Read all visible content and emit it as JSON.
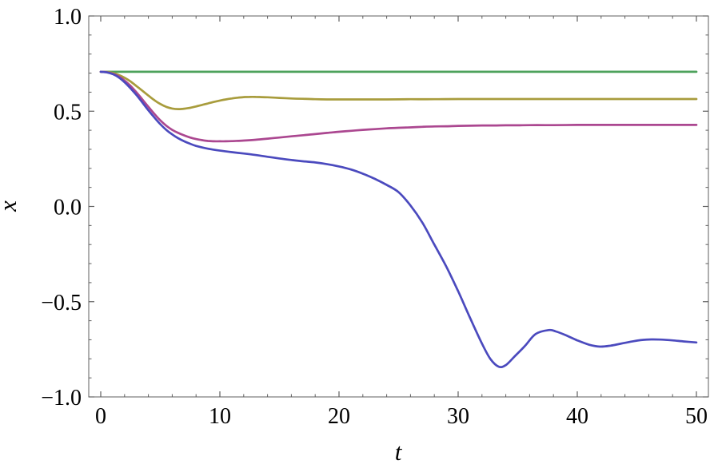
{
  "figure": {
    "background": "#ffffff",
    "frame_color": "#5f5f5f",
    "tick_color": "#5f5f5f",
    "tick_label_color": "#000000"
  },
  "chart_data": {
    "type": "line",
    "title": "",
    "xlabel": "t",
    "ylabel": "x",
    "xlim": [
      0,
      50
    ],
    "ylim": [
      -1.0,
      1.0
    ],
    "grid": false,
    "legend_position": "none",
    "frame": true,
    "x_major_ticks": [
      0,
      10,
      20,
      30,
      40,
      50
    ],
    "x_major_tick_labels": [
      "0",
      "10",
      "20",
      "30",
      "40",
      "50"
    ],
    "x_minor_tick_step": 2,
    "y_major_ticks": [
      -1.0,
      -0.5,
      0.0,
      0.5,
      1.0
    ],
    "y_major_tick_labels": [
      "−1.0",
      "−0.5",
      "0.0",
      "0.5",
      "1.0"
    ],
    "y_minor_tick_step": 0.1,
    "series": [
      {
        "name": "green-constant-curve",
        "color": "#4EA25C",
        "points": [
          [
            0,
            0.707
          ],
          [
            10,
            0.707
          ],
          [
            20,
            0.707
          ],
          [
            30,
            0.707
          ],
          [
            40,
            0.707
          ],
          [
            50,
            0.707
          ]
        ]
      },
      {
        "name": "olive-curve",
        "color": "#A89C3C",
        "points": [
          [
            0,
            0.707
          ],
          [
            0.5,
            0.706
          ],
          [
            1,
            0.701
          ],
          [
            1.5,
            0.691
          ],
          [
            2,
            0.676
          ],
          [
            2.5,
            0.656
          ],
          [
            3,
            0.632
          ],
          [
            3.5,
            0.607
          ],
          [
            4,
            0.582
          ],
          [
            4.5,
            0.558
          ],
          [
            5,
            0.538
          ],
          [
            5.5,
            0.523
          ],
          [
            6,
            0.514
          ],
          [
            6.5,
            0.511
          ],
          [
            7,
            0.513
          ],
          [
            7.5,
            0.518
          ],
          [
            8,
            0.525
          ],
          [
            8.5,
            0.533
          ],
          [
            9,
            0.541
          ],
          [
            9.5,
            0.549
          ],
          [
            10,
            0.556
          ],
          [
            10.5,
            0.562
          ],
          [
            11,
            0.567
          ],
          [
            11.5,
            0.571
          ],
          [
            12,
            0.574
          ],
          [
            12.5,
            0.575
          ],
          [
            13,
            0.575
          ],
          [
            13.5,
            0.574
          ],
          [
            14,
            0.573
          ],
          [
            15,
            0.57
          ],
          [
            16,
            0.567
          ],
          [
            17,
            0.565
          ],
          [
            18,
            0.563
          ],
          [
            19,
            0.562
          ],
          [
            20,
            0.562
          ],
          [
            22,
            0.562
          ],
          [
            24,
            0.562
          ],
          [
            26,
            0.563
          ],
          [
            28,
            0.563
          ],
          [
            30,
            0.564
          ],
          [
            34,
            0.564
          ],
          [
            38,
            0.564
          ],
          [
            42,
            0.564
          ],
          [
            46,
            0.564
          ],
          [
            50,
            0.564
          ]
        ]
      },
      {
        "name": "magenta-curve",
        "color": "#AB4790",
        "points": [
          [
            0,
            0.707
          ],
          [
            0.5,
            0.705
          ],
          [
            1,
            0.697
          ],
          [
            1.5,
            0.683
          ],
          [
            2,
            0.661
          ],
          [
            2.5,
            0.633
          ],
          [
            3,
            0.599
          ],
          [
            3.5,
            0.561
          ],
          [
            4,
            0.523
          ],
          [
            4.5,
            0.486
          ],
          [
            5,
            0.452
          ],
          [
            5.5,
            0.424
          ],
          [
            6,
            0.402
          ],
          [
            6.5,
            0.386
          ],
          [
            7,
            0.373
          ],
          [
            7.5,
            0.362
          ],
          [
            8,
            0.354
          ],
          [
            8.5,
            0.348
          ],
          [
            9,
            0.344
          ],
          [
            9.5,
            0.342
          ],
          [
            10,
            0.342
          ],
          [
            10.5,
            0.342
          ],
          [
            11,
            0.343
          ],
          [
            12,
            0.346
          ],
          [
            13,
            0.35
          ],
          [
            14,
            0.356
          ],
          [
            15,
            0.362
          ],
          [
            16,
            0.368
          ],
          [
            17,
            0.374
          ],
          [
            18,
            0.38
          ],
          [
            19,
            0.386
          ],
          [
            20,
            0.392
          ],
          [
            21,
            0.397
          ],
          [
            22,
            0.402
          ],
          [
            23,
            0.406
          ],
          [
            24,
            0.41
          ],
          [
            25,
            0.413
          ],
          [
            26,
            0.415
          ],
          [
            27,
            0.418
          ],
          [
            28,
            0.42
          ],
          [
            29,
            0.421
          ],
          [
            30,
            0.423
          ],
          [
            31,
            0.424
          ],
          [
            32,
            0.425
          ],
          [
            33,
            0.425
          ],
          [
            34,
            0.426
          ],
          [
            35,
            0.426
          ],
          [
            36,
            0.427
          ],
          [
            38,
            0.427
          ],
          [
            40,
            0.428
          ],
          [
            42,
            0.428
          ],
          [
            44,
            0.428
          ],
          [
            46,
            0.428
          ],
          [
            48,
            0.428
          ],
          [
            50,
            0.428
          ]
        ]
      },
      {
        "name": "blue-curve",
        "color": "#4B4ABE",
        "points": [
          [
            0,
            0.707
          ],
          [
            0.5,
            0.704
          ],
          [
            1,
            0.695
          ],
          [
            1.5,
            0.678
          ],
          [
            2,
            0.652
          ],
          [
            2.5,
            0.62
          ],
          [
            3,
            0.585
          ],
          [
            3.5,
            0.545
          ],
          [
            4,
            0.505
          ],
          [
            4.5,
            0.467
          ],
          [
            5,
            0.432
          ],
          [
            5.5,
            0.402
          ],
          [
            6,
            0.378
          ],
          [
            6.5,
            0.358
          ],
          [
            7,
            0.342
          ],
          [
            7.5,
            0.329
          ],
          [
            8,
            0.318
          ],
          [
            9,
            0.303
          ],
          [
            10,
            0.293
          ],
          [
            11,
            0.285
          ],
          [
            12,
            0.278
          ],
          [
            13,
            0.27
          ],
          [
            14,
            0.261
          ],
          [
            15,
            0.252
          ],
          [
            16,
            0.244
          ],
          [
            17,
            0.237
          ],
          [
            18,
            0.231
          ],
          [
            19,
            0.222
          ],
          [
            20,
            0.21
          ],
          [
            21,
            0.194
          ],
          [
            22,
            0.172
          ],
          [
            23,
            0.145
          ],
          [
            24,
            0.113
          ],
          [
            25,
            0.075
          ],
          [
            26,
            0.005
          ],
          [
            27,
            -0.085
          ],
          [
            28,
            -0.2
          ],
          [
            29,
            -0.315
          ],
          [
            30,
            -0.445
          ],
          [
            31,
            -0.585
          ],
          [
            32,
            -0.72
          ],
          [
            32.7,
            -0.8
          ],
          [
            33.4,
            -0.841
          ],
          [
            34,
            -0.833
          ],
          [
            34.7,
            -0.79
          ],
          [
            35.6,
            -0.733
          ],
          [
            36.5,
            -0.67
          ],
          [
            37.6,
            -0.649
          ],
          [
            38.2,
            -0.656
          ],
          [
            39,
            -0.675
          ],
          [
            40,
            -0.703
          ],
          [
            41,
            -0.726
          ],
          [
            41.9,
            -0.736
          ],
          [
            42.8,
            -0.731
          ],
          [
            43.6,
            -0.721
          ],
          [
            44.5,
            -0.71
          ],
          [
            45.3,
            -0.702
          ],
          [
            46.2,
            -0.698
          ],
          [
            47,
            -0.699
          ],
          [
            48,
            -0.703
          ],
          [
            49,
            -0.709
          ],
          [
            50,
            -0.714
          ]
        ]
      }
    ]
  }
}
